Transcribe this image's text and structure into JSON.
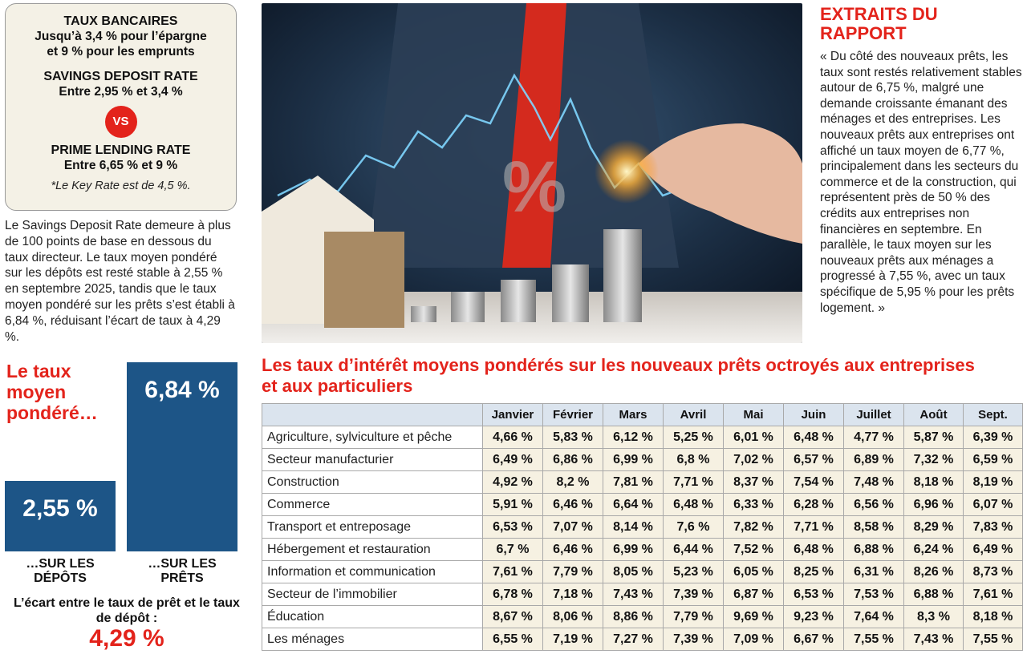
{
  "ratebox": {
    "heading1": "TAUX BANCAIRES",
    "line1": "Jusqu’à 3,4 % pour l’épargne",
    "line2": "et 9 % pour les emprunts",
    "heading2": "SAVINGS DEPOSIT RATE",
    "line3": "Entre 2,95 % et 3,4 %",
    "vs": "VS",
    "heading3": "PRIME LENDING RATE",
    "line4": "Entre 6,65 % et 9 %",
    "note": "*Le Key Rate est de 4,5 %."
  },
  "left_paragraph": "Le Savings Deposit Rate demeure à plus de 100 points de base en dessous du taux directeur. Le taux moyen pondéré sur les dépôts est resté stable à 2,55 % en septembre 2025, tandis que le taux moyen pondéré sur les prêts s’est établi à 6,84 %, réduisant l’écart de taux à 4,29 %.",
  "left_chart": {
    "title": "Le taux moyen pondéré…",
    "caption_deposits": "…SUR LES DÉPÔTS",
    "caption_loans": "…SUR LES PRÊTS",
    "gap_text": "L’écart entre le taux de prêt et le taux de dépôt :",
    "gap_value": "4,29 %"
  },
  "report": {
    "title": "EXTRAITS DU RAPPORT",
    "text": "« Du côté des nouveaux prêts, les taux sont restés relativement stables autour de 6,75 %, malgré une demande croissante émanant des ménages et des entreprises. Les nouveaux prêts aux entreprises ont affiché un taux moyen de 6,77 %, principalement dans les secteurs du commerce et de la construction, qui représentent près de 50 % des crédits aux entreprises non financières en septembre. En parallèle, le taux moyen sur les nouveaux prêts aux ménages a progressé à 7,55 %, avec un taux spécifique de 5,95 % pour les prêts logement. »"
  },
  "table_title": "Les taux d’intérêt moyens pondérés sur les nouveaux prêts octroyés aux entreprises et aux particuliers",
  "colors": {
    "accent_red": "#e3231b",
    "bar_blue": "#1d5587",
    "box_bg": "#f4f1e6",
    "header_bg": "#dbe4ee",
    "cell_bg": "#f6f1e2"
  },
  "chart_data": [
    {
      "type": "bar",
      "categories": [
        "…SUR LES DÉPÔTS",
        "…SUR LES PRÊTS"
      ],
      "values": [
        2.55,
        6.84
      ],
      "labels": [
        "2,55 %",
        "6,84 %"
      ],
      "title": "Le taux moyen pondéré…"
    },
    {
      "type": "table",
      "columns": [
        "Janvier",
        "Février",
        "Mars",
        "Avril",
        "Mai",
        "Juin",
        "Juillet",
        "Août",
        "Sept."
      ],
      "rows": [
        {
          "label": "Agriculture, sylviculture et pêche",
          "values": [
            "4,66 %",
            "5,83 %",
            "6,12 %",
            "5,25 %",
            "6,01 %",
            "6,48 %",
            "4,77 %",
            "5,87 %",
            "6,39 %"
          ]
        },
        {
          "label": "Secteur manufacturier",
          "values": [
            "6,49 %",
            "6,86 %",
            "6,99 %",
            "6,8 %",
            "7,02 %",
            "6,57 %",
            "6,89 %",
            "7,32 %",
            "6,59 %"
          ]
        },
        {
          "label": "Construction",
          "values": [
            "4,92 %",
            "8,2 %",
            "7,81 %",
            "7,71 %",
            "8,37 %",
            "7,54 %",
            "7,48 %",
            "8,18 %",
            "8,19 %"
          ]
        },
        {
          "label": "Commerce",
          "values": [
            "5,91 %",
            "6,46 %",
            "6,64 %",
            "6,48 %",
            "6,33 %",
            "6,28 %",
            "6,56 %",
            "6,96 %",
            "6,07 %"
          ]
        },
        {
          "label": "Transport et entreposage",
          "values": [
            "6,53 %",
            "7,07 %",
            "8,14 %",
            "7,6 %",
            "7,82 %",
            "7,71 %",
            "8,58 %",
            "8,29 %",
            "7,83 %"
          ]
        },
        {
          "label": "Hébergement et restauration",
          "values": [
            "6,7 %",
            "6,46 %",
            "6,99 %",
            "6,44 %",
            "7,52 %",
            "6,48 %",
            "6,88 %",
            "6,24 %",
            "6,49 %"
          ]
        },
        {
          "label": "Information et communication",
          "values": [
            "7,61 %",
            "7,79 %",
            "8,05 %",
            "5,23 %",
            "6,05 %",
            "8,25 %",
            "6,31 %",
            "8,26 %",
            "8,73 %"
          ]
        },
        {
          "label": "Secteur de l’immobilier",
          "values": [
            "6,78 %",
            "7,18 %",
            "7,43 %",
            "7,39 %",
            "6,87 %",
            "6,53 %",
            "7,53 %",
            "6,88 %",
            "7,61 %"
          ]
        },
        {
          "label": "Éducation",
          "values": [
            "8,67 %",
            "8,06 %",
            "8,86 %",
            "7,79 %",
            "9,69 %",
            "9,23 %",
            "7,64 %",
            "8,3 %",
            "8,18 %"
          ]
        },
        {
          "label": "Les ménages",
          "values": [
            "6,55 %",
            "7,19 %",
            "7,27 %",
            "7,39 %",
            "7,09 %",
            "6,67 %",
            "7,55 %",
            "7,43 %",
            "7,55 %"
          ]
        }
      ]
    }
  ]
}
